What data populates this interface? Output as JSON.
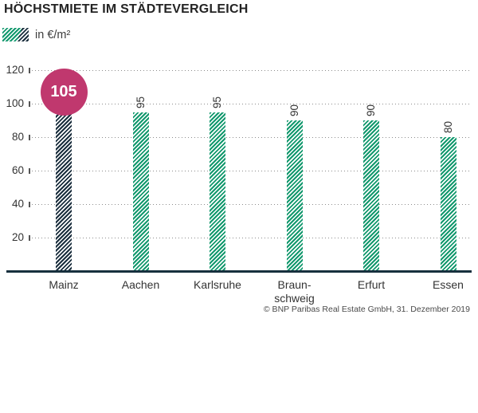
{
  "header": {
    "title": "HÖCHSTMIETE IM STÄDTEVERGLEICH"
  },
  "legend": {
    "label": "in €/m²",
    "swatch_colors": [
      "#12986d",
      "#1a2e3d"
    ]
  },
  "footer": {
    "source": "© BNP Paribas Real Estate GmbH, 31. Dezember 2019"
  },
  "chart_data": {
    "type": "bar",
    "title": "HÖCHSTMIETE IM STÄDTEVERGLEICH",
    "unit_label": "in €/m²",
    "categories": [
      "Mainz",
      "Aachen",
      "Karlsruhe",
      "Braun-\nschweig",
      "Erfurt",
      "Essen"
    ],
    "values": [
      105,
      95,
      95,
      90,
      90,
      80
    ],
    "highlight_index": 0,
    "yticks": [
      20,
      40,
      60,
      80,
      100,
      120
    ],
    "ylim": [
      0,
      120
    ],
    "grid": "dotted-horizontal",
    "legend_position": "top-left",
    "value_label_rotation": -90,
    "colors": {
      "bar_hatch": "#12986d",
      "highlight_bar_hatch": "#1a2e3d",
      "highlight_badge": "#c0386e",
      "axis_line": "#17303e",
      "grid_dots": "#8c8c8c",
      "text": "#333333"
    },
    "source": "© BNP Paribas Real Estate GmbH, 31. Dezember 2019"
  }
}
